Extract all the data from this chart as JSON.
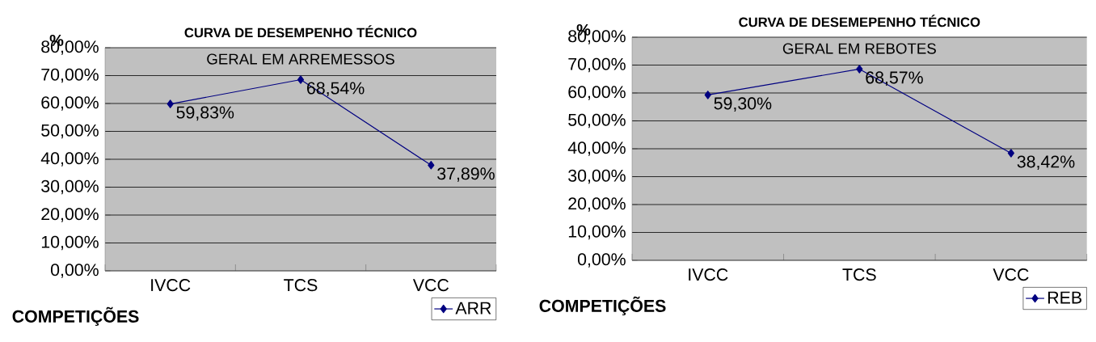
{
  "chart_data": [
    {
      "type": "line",
      "title": "CURVA DE DESEMPENHO TÉCNICO",
      "ylabel": "%",
      "xlabel": "COMPETIÇÕES",
      "annotations": [
        "GERAL EM ARREMESSOS"
      ],
      "categories": [
        "IVCC",
        "TCS",
        "VCC"
      ],
      "series": [
        {
          "name": "ARR",
          "color": "#000080",
          "values": [
            59.83,
            68.54,
            37.89
          ],
          "value_labels": [
            "59,83%",
            "68,54%",
            "37,89%"
          ]
        }
      ],
      "ylim": [
        0,
        80
      ],
      "yticks": [
        {
          "value": 0,
          "label": "0,00%"
        },
        {
          "value": 10,
          "label": "10,00%"
        },
        {
          "value": 20,
          "label": "20,00%"
        },
        {
          "value": 30,
          "label": "30,00%"
        },
        {
          "value": 40,
          "label": "40,00%"
        },
        {
          "value": 50,
          "label": "50,00%"
        },
        {
          "value": 60,
          "label": "60,00%"
        },
        {
          "value": 70,
          "label": "70,00%"
        },
        {
          "value": 80,
          "label": "80,00%"
        }
      ],
      "grid": "y",
      "legend": "bottom right",
      "marker": "diamond",
      "line_style": "solid"
    },
    {
      "type": "line",
      "title": "CURVA DE DESEMEPENHO TÉCNICO",
      "ylabel": "%",
      "xlabel": "COMPETIÇÕES",
      "annotations": [
        "GERAL EM REBOTES"
      ],
      "categories": [
        "IVCC",
        "TCS",
        "VCC"
      ],
      "series": [
        {
          "name": "REB",
          "color": "#000080",
          "values": [
            59.3,
            68.57,
            38.42
          ],
          "value_labels": [
            "59,30%",
            "68,57%",
            "38,42%"
          ]
        }
      ],
      "ylim": [
        0,
        80
      ],
      "yticks": [
        {
          "value": 0,
          "label": "0,00%"
        },
        {
          "value": 10,
          "label": "10,00%"
        },
        {
          "value": 20,
          "label": "20,00%"
        },
        {
          "value": 30,
          "label": "30,00%"
        },
        {
          "value": 40,
          "label": "40,00%"
        },
        {
          "value": 50,
          "label": "50,00%"
        },
        {
          "value": 60,
          "label": "60,00%"
        },
        {
          "value": 70,
          "label": "70,00%"
        },
        {
          "value": 80,
          "label": "80,00%"
        }
      ],
      "grid": "y",
      "legend": "bottom right",
      "marker": "diamond",
      "line_style": "solid"
    }
  ]
}
